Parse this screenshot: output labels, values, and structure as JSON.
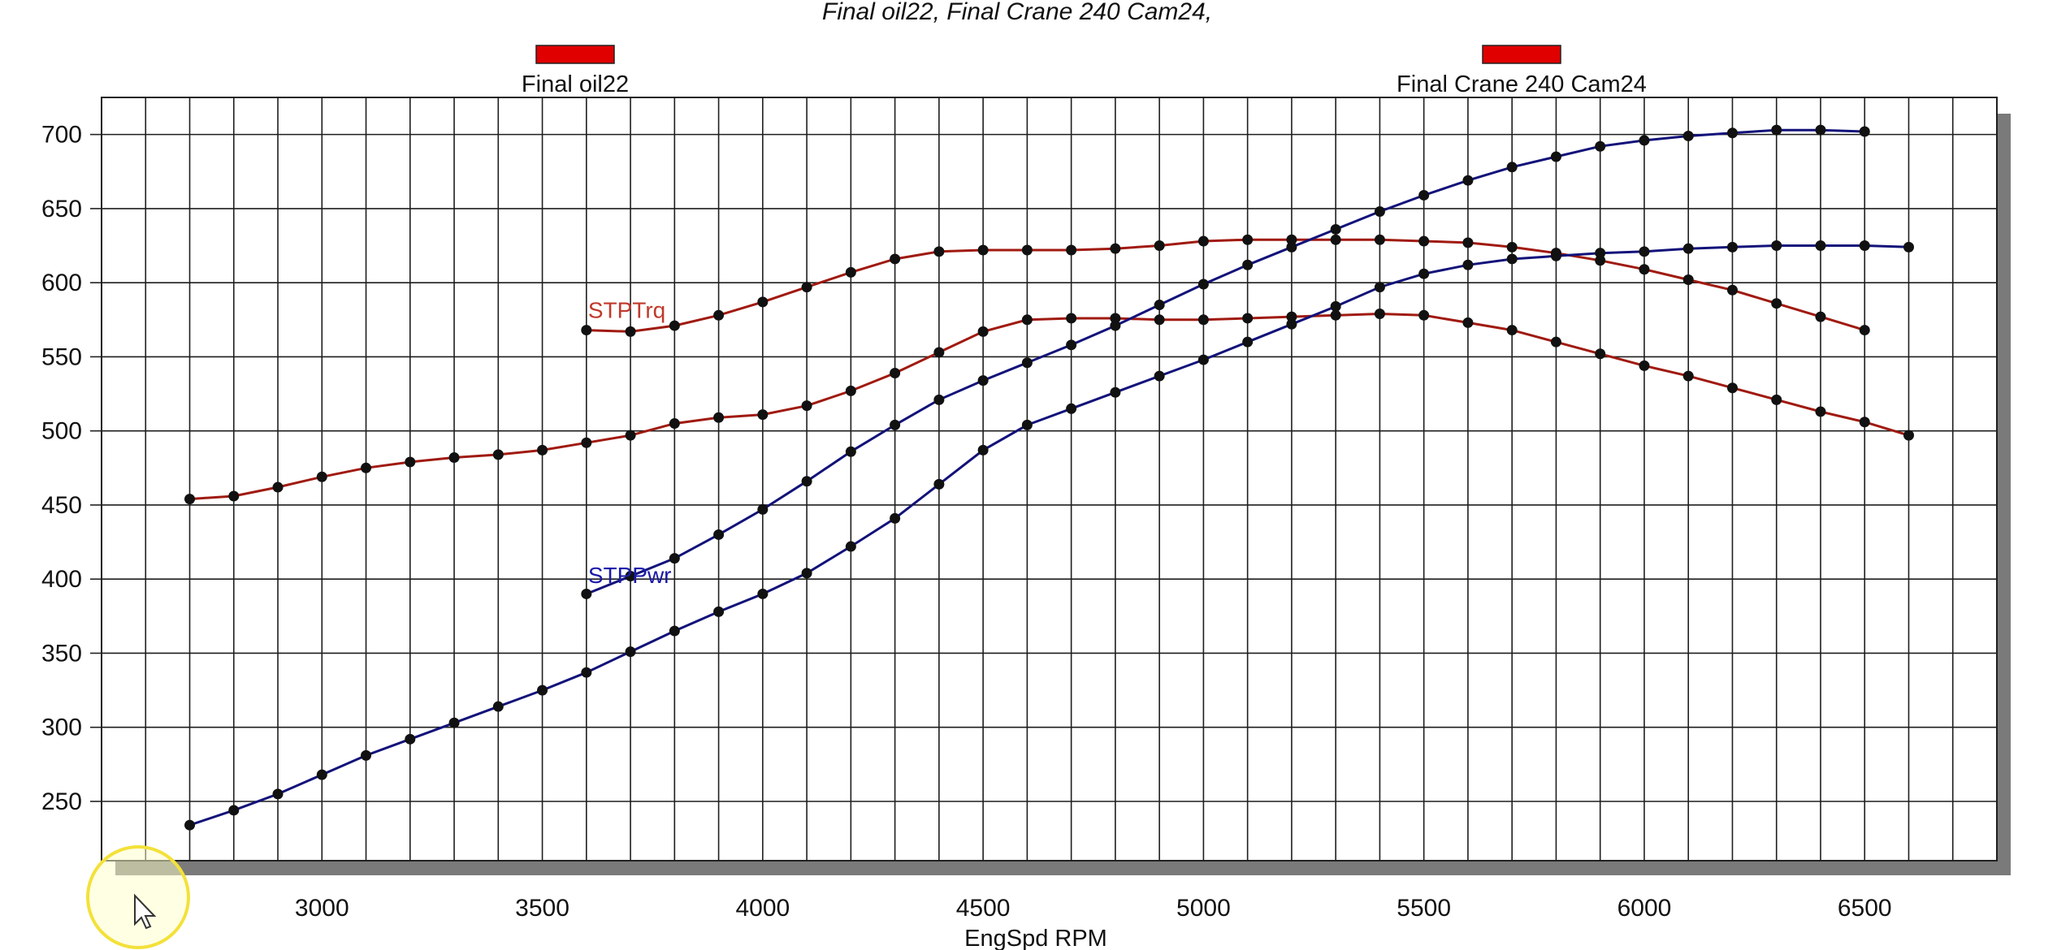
{
  "chart_data": {
    "type": "line",
    "title": "Final oil22, Final Crane 240 Cam24,",
    "xlabel": "EngSpd  RPM",
    "ylabel": "",
    "xlim": [
      2500,
      6800
    ],
    "ylim": [
      210,
      725
    ],
    "x_ticks": [
      3000,
      3500,
      4000,
      4500,
      5000,
      5500,
      6000,
      6500
    ],
    "y_ticks": [
      250,
      300,
      350,
      400,
      450,
      500,
      550,
      600,
      650,
      700
    ],
    "grid": true,
    "legend": {
      "placement": "top",
      "entries": [
        {
          "label": "Final oil22",
          "color": "#e00000"
        },
        {
          "label": "Final Crane 240 Cam24",
          "color": "#e00000"
        }
      ]
    },
    "annotations": [
      {
        "text": "STPTrq",
        "x": 3600,
        "y": 572,
        "color": "#c0392b"
      },
      {
        "text": "STPPwr",
        "x": 3600,
        "y": 393,
        "color": "#1a1aaa"
      }
    ],
    "series": [
      {
        "name": "STPTrq",
        "color": "#a01a10",
        "x": [
          2700,
          2800,
          2900,
          3000,
          3100,
          3200,
          3300,
          3400,
          3500,
          3600,
          3700,
          3800,
          3900,
          4000,
          4100,
          4200,
          4300,
          4400,
          4500,
          4600,
          4700,
          4800,
          4900,
          5000,
          5100,
          5200,
          5300,
          5400,
          5500,
          5600,
          5700,
          5800,
          5900,
          6000,
          6100,
          6200,
          6300,
          6400,
          6500,
          6600
        ],
        "values": [
          454,
          456,
          462,
          469,
          475,
          479,
          482,
          484,
          487,
          492,
          497,
          505,
          509,
          511,
          517,
          527,
          539,
          553,
          567,
          575,
          576,
          576,
          575,
          575,
          576,
          577,
          578,
          579,
          578,
          573,
          568,
          560,
          552,
          544,
          537,
          529,
          521,
          513,
          506,
          497
        ]
      },
      {
        "name": "STPTrq",
        "color": "#a01a10",
        "x": [
          3600,
          3700,
          3800,
          3900,
          4000,
          4100,
          4200,
          4300,
          4400,
          4500,
          4600,
          4700,
          4800,
          4900,
          5000,
          5100,
          5200,
          5300,
          5400,
          5500,
          5600,
          5700,
          5800,
          5900,
          6000,
          6100,
          6200,
          6300,
          6400,
          6500
        ],
        "values": [
          568,
          567,
          571,
          578,
          587,
          597,
          607,
          616,
          621,
          622,
          622,
          622,
          623,
          625,
          628,
          629,
          629,
          629,
          629,
          628,
          627,
          624,
          620,
          615,
          609,
          602,
          595,
          586,
          577,
          568
        ]
      },
      {
        "name": "STPPwr",
        "color": "#12127a",
        "x": [
          2700,
          2800,
          2900,
          3000,
          3100,
          3200,
          3300,
          3400,
          3500,
          3600,
          3700,
          3800,
          3900,
          4000,
          4100,
          4200,
          4300,
          4400,
          4500,
          4600,
          4700,
          4800,
          4900,
          5000,
          5100,
          5200,
          5300,
          5400,
          5500,
          5600,
          5700,
          5800,
          5900,
          6000,
          6100,
          6200,
          6300,
          6400,
          6500,
          6600
        ],
        "values": [
          234,
          244,
          255,
          268,
          281,
          292,
          303,
          314,
          325,
          337,
          351,
          365,
          378,
          390,
          404,
          422,
          441,
          464,
          487,
          504,
          515,
          526,
          537,
          548,
          560,
          572,
          584,
          597,
          606,
          612,
          616,
          618,
          620,
          621,
          623,
          624,
          625,
          625,
          625,
          624
        ]
      },
      {
        "name": "STPPwr",
        "color": "#12127a",
        "x": [
          3600,
          3700,
          3800,
          3900,
          4000,
          4100,
          4200,
          4300,
          4400,
          4500,
          4600,
          4700,
          4800,
          4900,
          5000,
          5100,
          5200,
          5300,
          5400,
          5500,
          5600,
          5700,
          5800,
          5900,
          6000,
          6100,
          6200,
          6300,
          6400,
          6500
        ],
        "values": [
          390,
          402,
          414,
          430,
          447,
          466,
          486,
          504,
          521,
          534,
          546,
          558,
          571,
          585,
          599,
          612,
          624,
          636,
          648,
          659,
          669,
          678,
          685,
          692,
          696,
          699,
          701,
          703,
          703,
          702
        ]
      }
    ]
  }
}
